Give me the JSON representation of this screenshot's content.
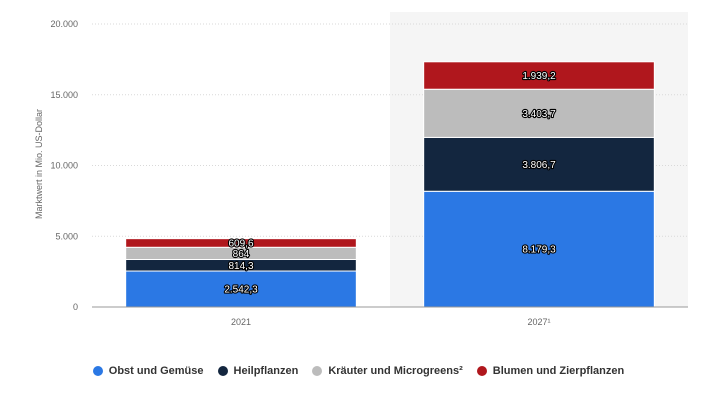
{
  "chart_data": {
    "type": "bar",
    "stacked": true,
    "title": "",
    "xlabel": "",
    "ylabel": "Marktwert in Mio. US-Dollar",
    "ylim": [
      0,
      20000
    ],
    "yticks": [
      0,
      5000,
      10000,
      15000,
      20000
    ],
    "ytick_labels": [
      "0",
      "5.000",
      "10.000",
      "15.000",
      "20.000"
    ],
    "categories": [
      "2021",
      "2027¹"
    ],
    "highlighted_category": "2027¹",
    "grid": true,
    "legend_position": "bottom",
    "series": [
      {
        "name": "Obst und Gemüse",
        "color": "#2b78e4",
        "values": [
          2542.3,
          8179.3
        ],
        "labels": [
          "2.542,3",
          "8.179,3"
        ]
      },
      {
        "name": "Heilpflanzen",
        "color": "#13263f",
        "values": [
          814.3,
          3806.7
        ],
        "labels": [
          "814,3",
          "3.806,7"
        ]
      },
      {
        "name": "Kräuter und Microgreens²",
        "color": "#bcbcbc",
        "values": [
          864,
          3403.7
        ],
        "labels": [
          "864",
          "3.403,7"
        ]
      },
      {
        "name": "Blumen und Zierpflanzen",
        "color": "#b0171d",
        "values": [
          609.6,
          1939.2
        ],
        "labels": [
          "609,6",
          "1.939,2"
        ]
      }
    ]
  }
}
